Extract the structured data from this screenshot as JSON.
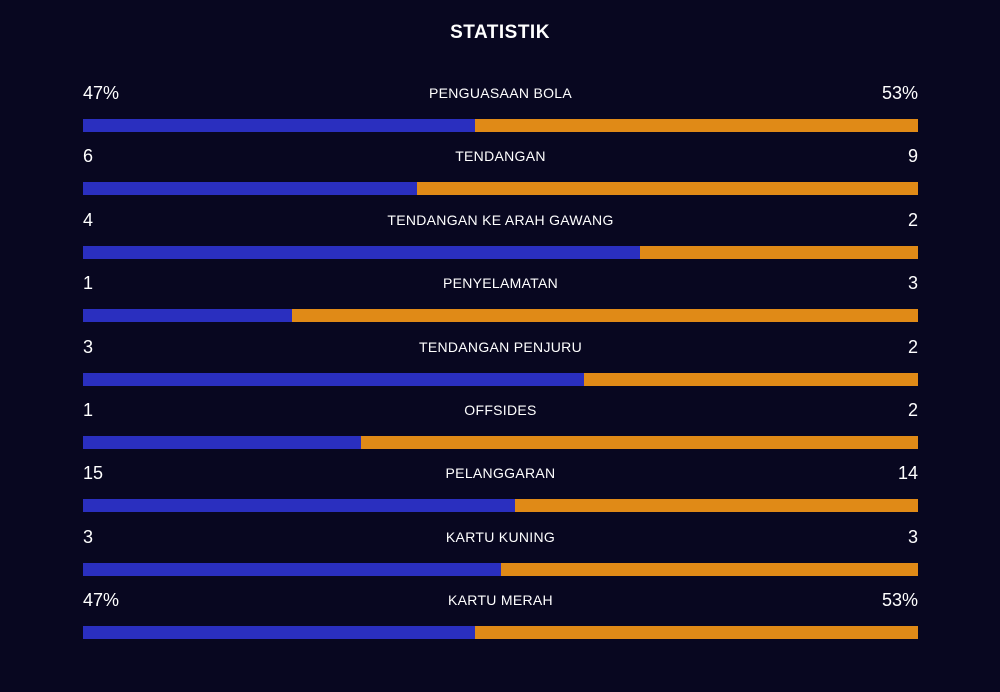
{
  "title": "STATISTIK",
  "colors": {
    "home": "#2a2fbf",
    "away": "#e08a17",
    "background": "#080720"
  },
  "stats": [
    {
      "label": "PENGUASAAN BOLA",
      "home": "47%",
      "away": "53%",
      "home_share": 0.47
    },
    {
      "label": "TENDANGAN",
      "home": "6",
      "away": "9",
      "home_share": 0.4
    },
    {
      "label": "TENDANGAN KE ARAH GAWANG",
      "home": "4",
      "away": "2",
      "home_share": 0.667
    },
    {
      "label": "PENYELAMATAN",
      "home": "1",
      "away": "3",
      "home_share": 0.25
    },
    {
      "label": "TENDANGAN PENJURU",
      "home": "3",
      "away": "2",
      "home_share": 0.6
    },
    {
      "label": "OFFSIDES",
      "home": "1",
      "away": "2",
      "home_share": 0.333
    },
    {
      "label": "PELANGGARAN",
      "home": "15",
      "away": "14",
      "home_share": 0.517
    },
    {
      "label": "KARTU KUNING",
      "home": "3",
      "away": "3",
      "home_share": 0.5
    },
    {
      "label": "KARTU MERAH",
      "home": "47%",
      "away": "53%",
      "home_share": 0.47
    }
  ]
}
